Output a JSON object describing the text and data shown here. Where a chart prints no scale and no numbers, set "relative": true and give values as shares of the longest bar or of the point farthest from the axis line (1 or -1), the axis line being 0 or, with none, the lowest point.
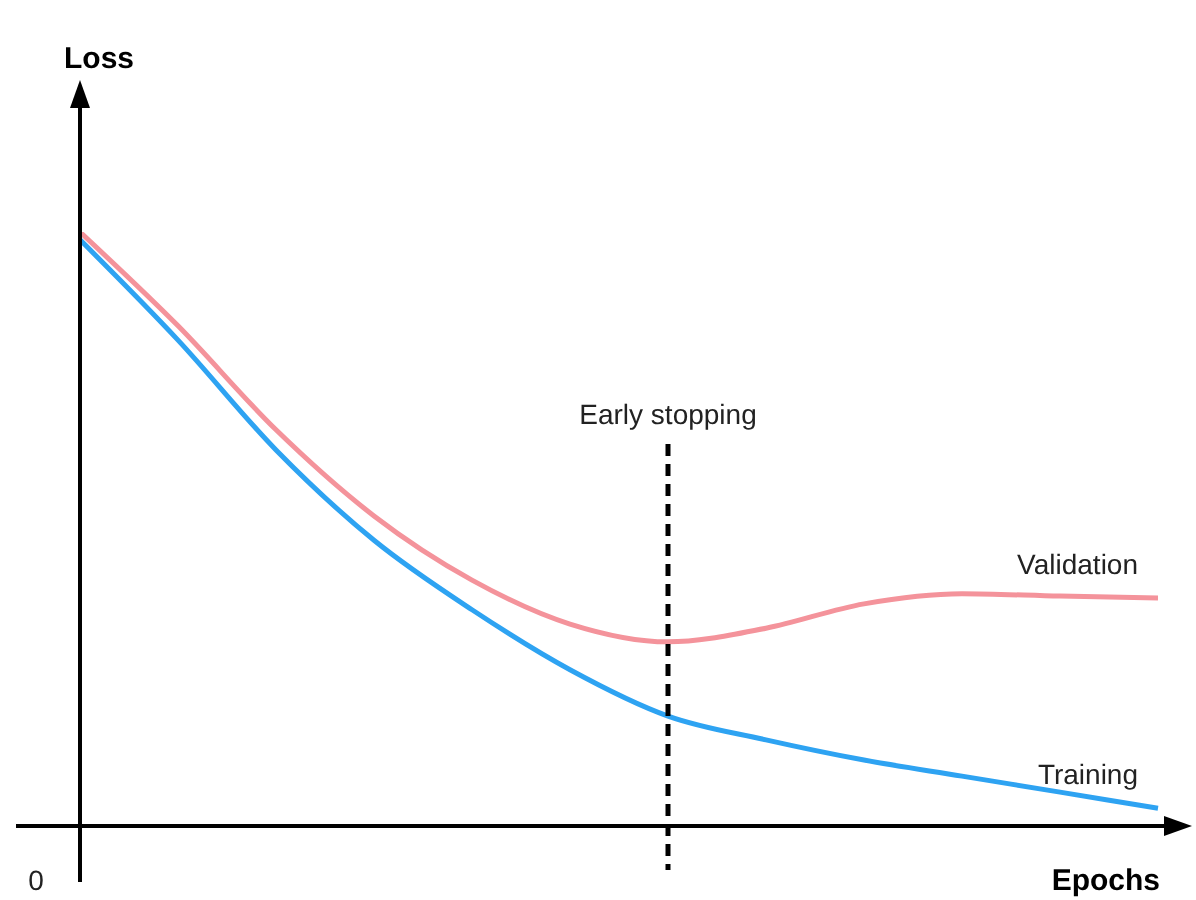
{
  "chart_data": {
    "type": "line",
    "relative": true,
    "xlabel": "Epochs",
    "categories": [
      null,
      null,
      null,
      null,
      null,
      null,
      null,
      null,
      null,
      null,
      null,
      null
    ],
    "series": [
      {
        "name": "Validation",
        "color": "#f4939b",
        "values": [
          1,
          0.842,
          0.667,
          0.522,
          0.414,
          0.34,
          0.31,
          0.333,
          0.374,
          0.391,
          0.387,
          0.384
        ]
      },
      {
        "name": "Training",
        "color": "#2ea3f2",
        "values": [
          0.987,
          0.818,
          0.633,
          0.481,
          0.364,
          0.263,
          0.185,
          0.145,
          0.111,
          0.084,
          0.057,
          0.03
        ]
      }
    ],
    "annotations": [
      "0",
      "Early stopping",
      "Loss"
    ],
    "grid": false,
    "legend": false,
    "marker": "none",
    "line_style": "solid"
  }
}
